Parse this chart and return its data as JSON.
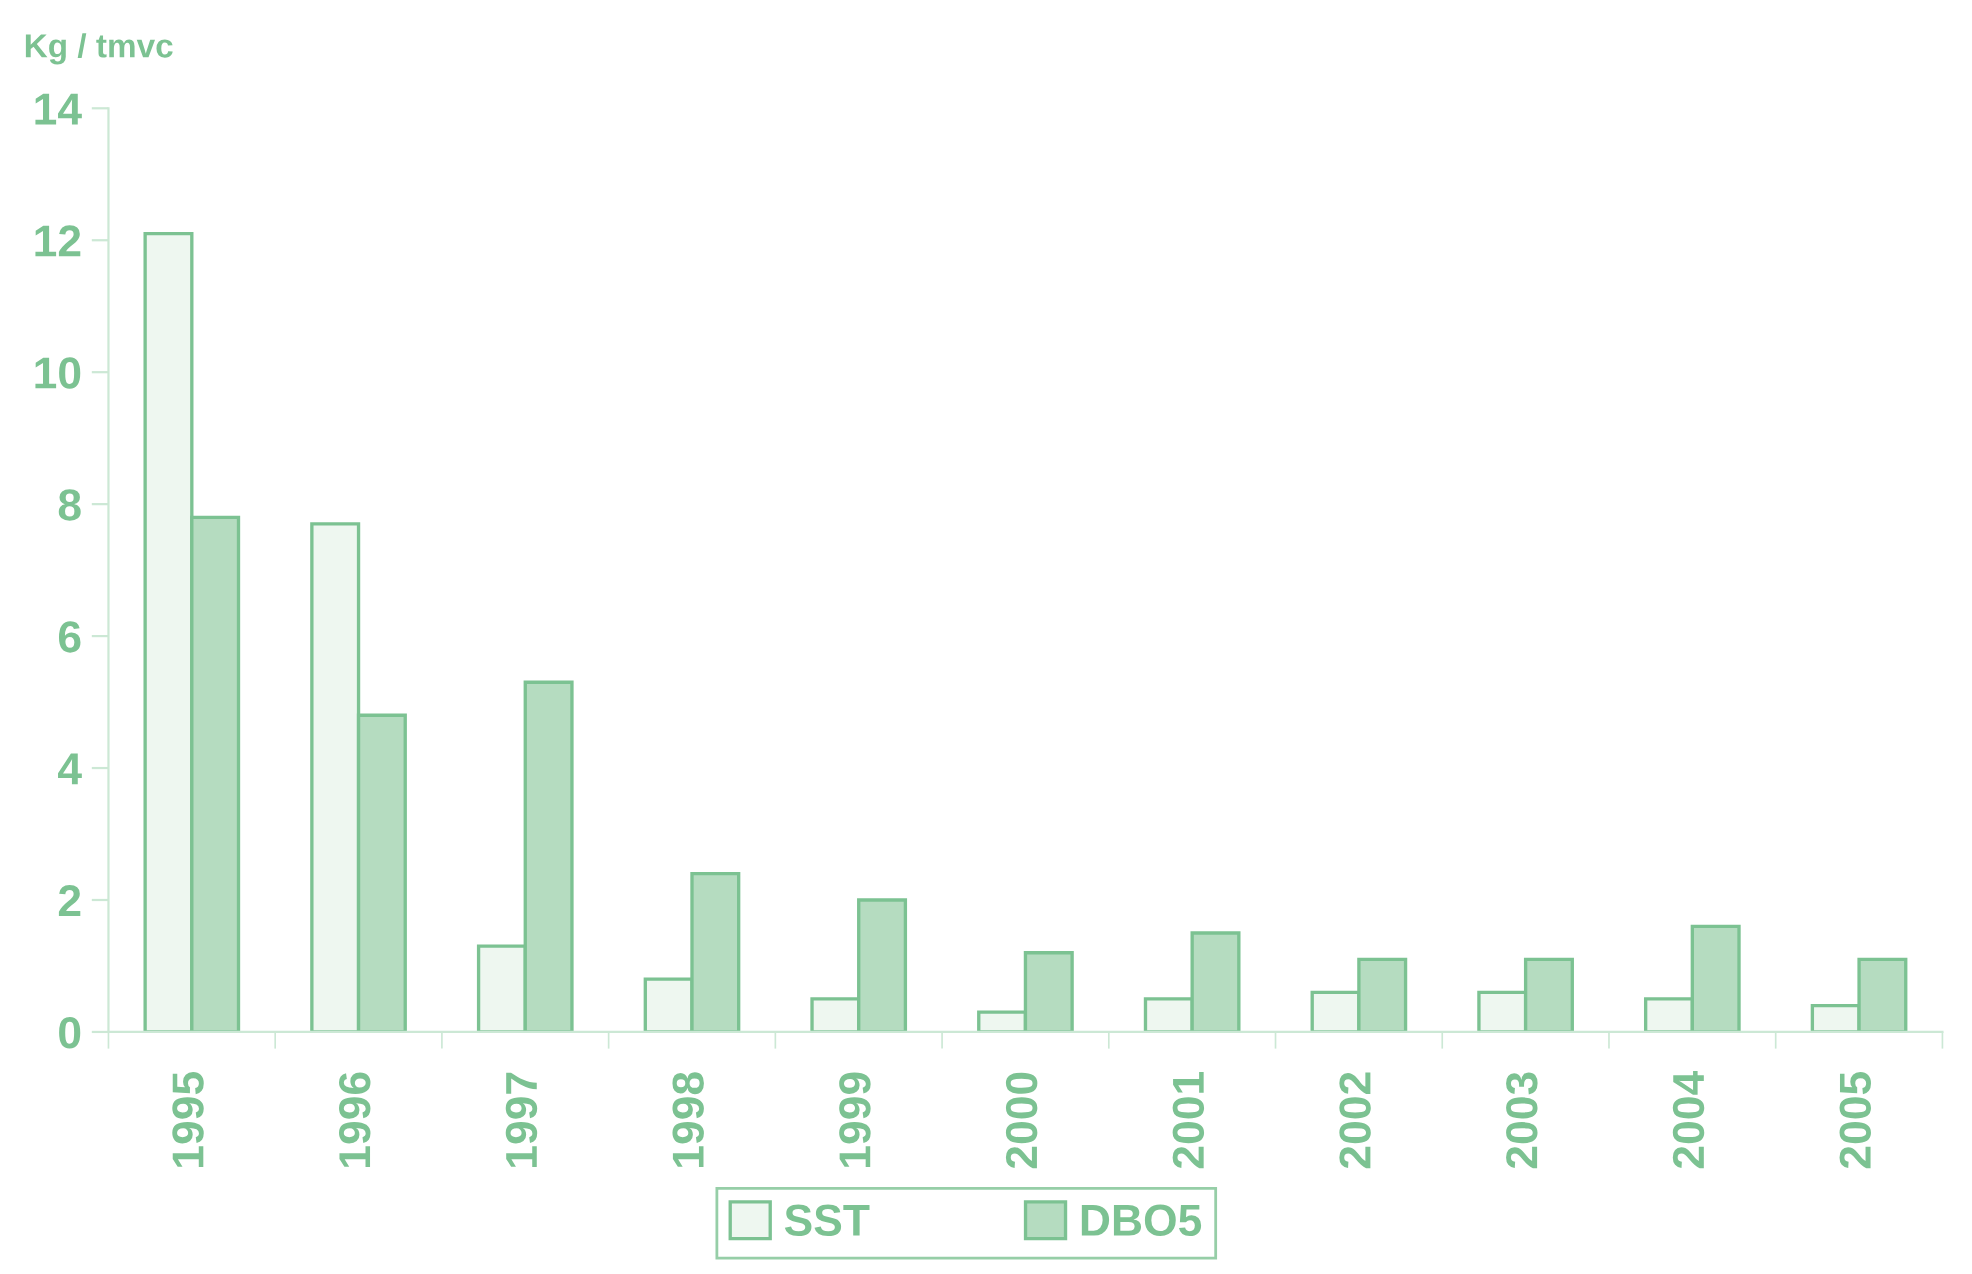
{
  "chart_data": {
    "type": "bar",
    "ylabel": "Kg / tmvc",
    "categories": [
      "1995",
      "1996",
      "1997",
      "1998",
      "1999",
      "2000",
      "2001",
      "2002",
      "2003",
      "2004",
      "2005"
    ],
    "series": [
      {
        "name": "SST",
        "color": "#eef7f0",
        "values": [
          12.1,
          7.7,
          1.3,
          0.8,
          0.5,
          0.3,
          0.5,
          0.6,
          0.6,
          0.5,
          0.4
        ]
      },
      {
        "name": "DBO5",
        "color": "#b5dcc0",
        "values": [
          7.8,
          4.8,
          5.3,
          2.4,
          2.0,
          1.2,
          1.5,
          1.1,
          1.1,
          1.6,
          1.1
        ]
      }
    ],
    "ylim": [
      0,
      14
    ],
    "yticks": [
      0,
      2,
      4,
      6,
      8,
      10,
      12,
      14
    ],
    "grid": false,
    "legend": "bottom"
  }
}
